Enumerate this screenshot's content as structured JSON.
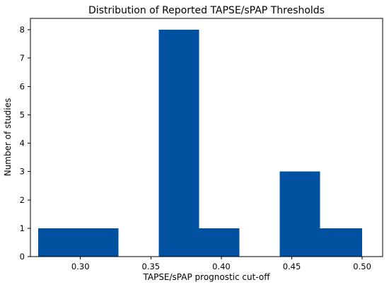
{
  "chart_data": {
    "type": "bar",
    "title": "Distribution of Reported TAPSE/sPAP Thresholds",
    "xlabel": "TAPSE/sPAP prognostic cut-off",
    "ylabel": "Number of studies",
    "bar_color": "#0051a0",
    "xlim": [
      0.2645,
      0.5145
    ],
    "ylim": [
      0,
      8.4
    ],
    "x_ticks": [
      {
        "value": 0.3,
        "label": "0.30"
      },
      {
        "value": 0.35,
        "label": "0.35"
      },
      {
        "value": 0.4,
        "label": "0.40"
      },
      {
        "value": 0.45,
        "label": "0.45"
      },
      {
        "value": 0.5,
        "label": "0.50"
      }
    ],
    "y_ticks": [
      {
        "value": 0,
        "label": "0"
      },
      {
        "value": 1,
        "label": "1"
      },
      {
        "value": 2,
        "label": "2"
      },
      {
        "value": 3,
        "label": "3"
      },
      {
        "value": 4,
        "label": "4"
      },
      {
        "value": 5,
        "label": "5"
      },
      {
        "value": 6,
        "label": "6"
      },
      {
        "value": 7,
        "label": "7"
      },
      {
        "value": 8,
        "label": "8"
      }
    ],
    "bins": [
      {
        "x0": 0.27,
        "x1": 0.2986,
        "count": 1
      },
      {
        "x0": 0.2986,
        "x1": 0.3271,
        "count": 1
      },
      {
        "x0": 0.3271,
        "x1": 0.3557,
        "count": 0
      },
      {
        "x0": 0.3557,
        "x1": 0.3843,
        "count": 8
      },
      {
        "x0": 0.3843,
        "x1": 0.4129,
        "count": 1
      },
      {
        "x0": 0.4129,
        "x1": 0.4414,
        "count": 0
      },
      {
        "x0": 0.4414,
        "x1": 0.47,
        "count": 3
      },
      {
        "x0": 0.47,
        "x1": 0.5,
        "count": 1
      }
    ],
    "grid": false,
    "legend": "none"
  }
}
